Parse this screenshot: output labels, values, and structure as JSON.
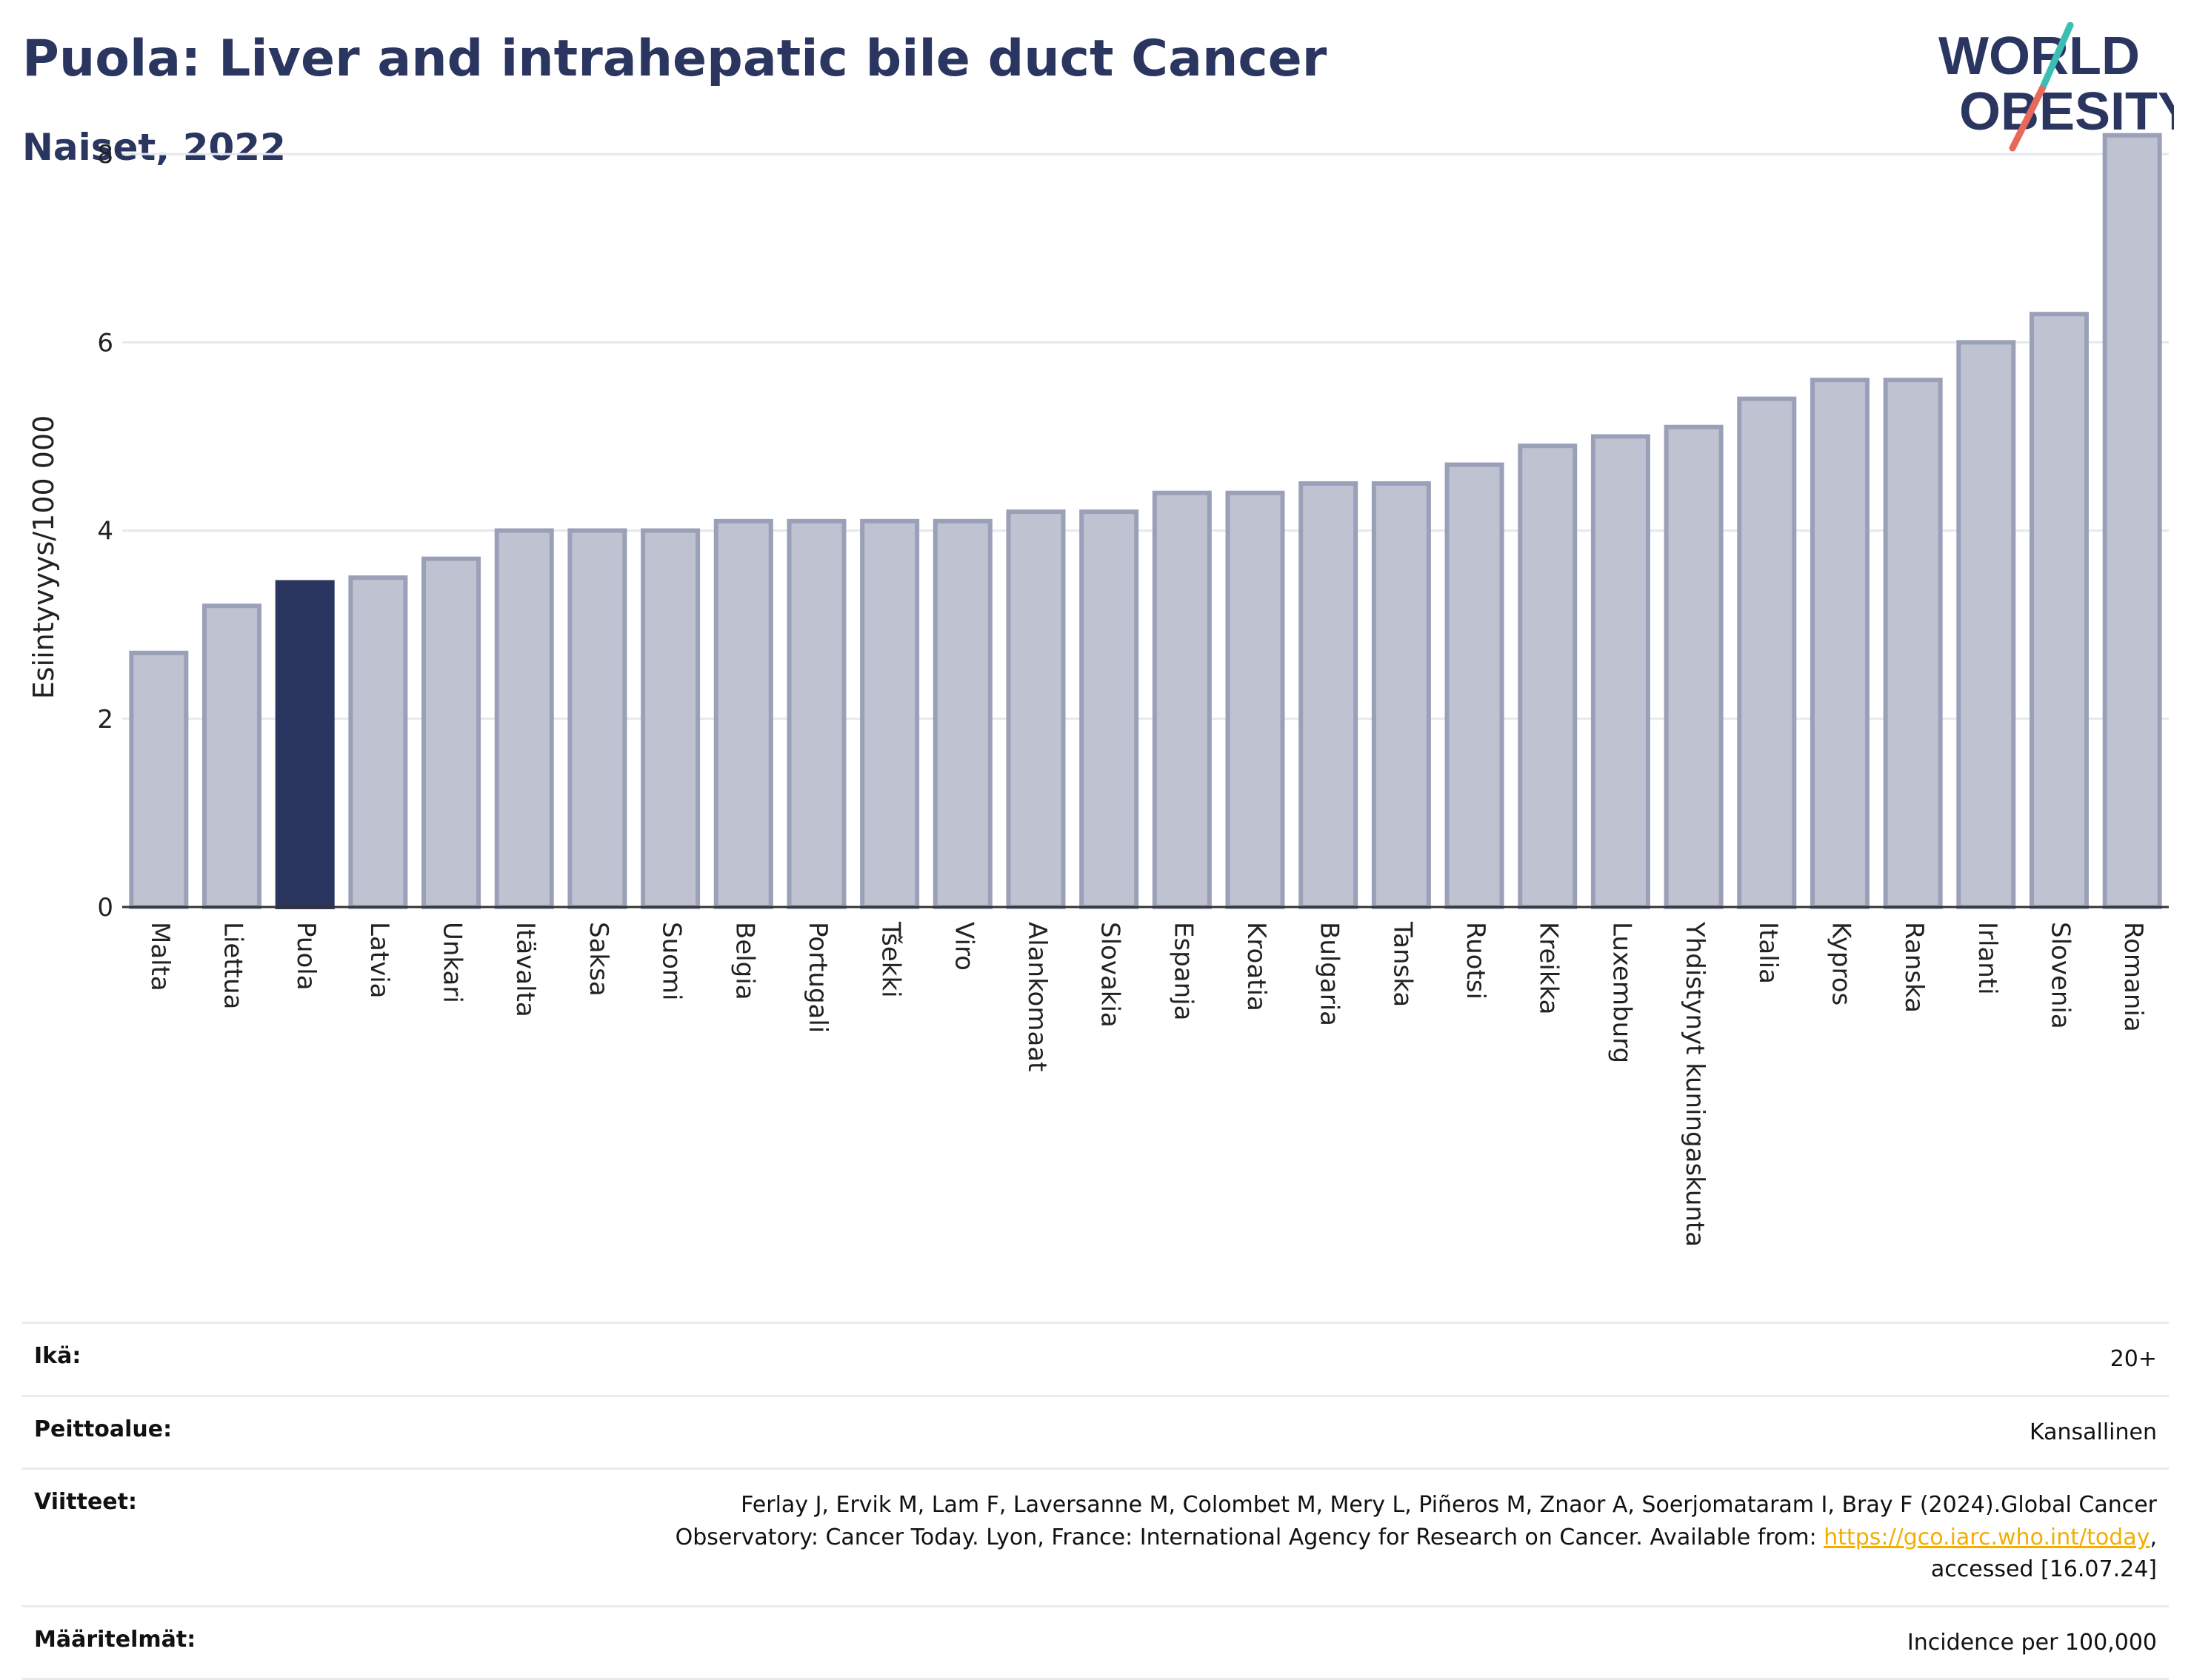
{
  "header": {
    "title": "Puola: Liver and intrahepatic bile duct Cancer",
    "subtitle": "Naiset, 2022"
  },
  "logo": {
    "line1": "WORLD",
    "line2": "OBESITY",
    "colors": {
      "text": "#2a3560",
      "slash_red": "#e8685a",
      "slash_teal": "#3bbfb4"
    }
  },
  "chart_data": {
    "type": "bar",
    "title": "Puola: Liver and intrahepatic bile duct Cancer",
    "subtitle": "Naiset, 2022",
    "ylabel": "Esiintyvyys/100 000",
    "xlabel": "",
    "ylim": [
      0,
      8.3
    ],
    "yticks": [
      0,
      2,
      4,
      6,
      8
    ],
    "grid": true,
    "highlight": "Puola",
    "colors": {
      "bar": "#bfc2d0",
      "bar_border": "#9aa0b8",
      "highlight": "#2a3560",
      "grid": "#e6e8ef",
      "axis": "#333333"
    },
    "categories": [
      "Malta",
      "Liettua",
      "Puola",
      "Latvia",
      "Unkari",
      "Itävalta",
      "Saksa",
      "Suomi",
      "Belgia",
      "Portugali",
      "Tšekki",
      "Viro",
      "Alankomaat",
      "Slovakia",
      "Espanja",
      "Kroatia",
      "Bulgaria",
      "Tanska",
      "Ruotsi",
      "Kreikka",
      "Luxemburg",
      "Yhdistynyt kuningaskunta",
      "Italia",
      "Kypros",
      "Ranska",
      "Irlanti",
      "Slovenia",
      "Romania"
    ],
    "values": [
      2.7,
      3.2,
      3.45,
      3.5,
      3.7,
      4.0,
      4.0,
      4.0,
      4.1,
      4.1,
      4.1,
      4.1,
      4.2,
      4.2,
      4.4,
      4.4,
      4.5,
      4.5,
      4.7,
      4.9,
      5.0,
      5.1,
      5.4,
      5.6,
      5.6,
      6.0,
      6.3,
      8.2
    ]
  },
  "meta": {
    "age_label": "Ikä:",
    "age_value": "20+",
    "coverage_label": "Peittoalue:",
    "coverage_value": "Kansallinen",
    "refs_label": "Viitteet:",
    "refs_line1": "Ferlay J, Ervik M, Lam F, Laversanne M, Colombet M, Mery L, Piñeros M, Znaor A, Soerjomataram I, Bray F (2024).Global Cancer",
    "refs_line2_pre": "Observatory: Cancer Today. Lyon, France: International Agency for Research on Cancer. Available from: ",
    "refs_link": "https://gco.iarc.who.int/today",
    "refs_line2_post": ",",
    "refs_line3": "accessed [16.07.24]",
    "def_label": "Määritelmät:",
    "def_value": "Incidence per 100,000"
  }
}
